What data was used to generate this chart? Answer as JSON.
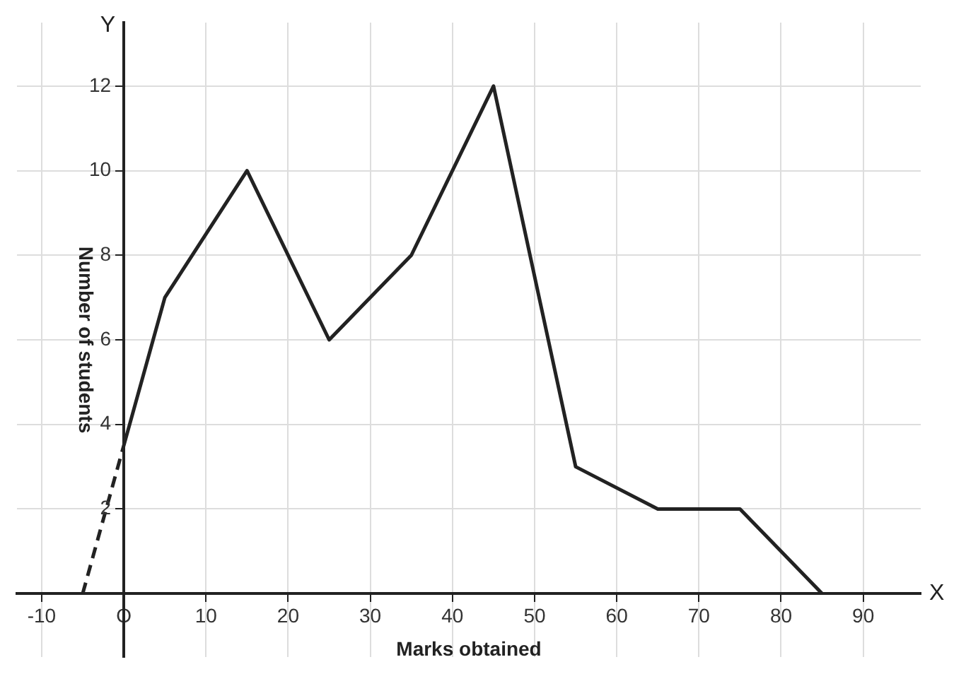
{
  "chart_data": {
    "type": "line",
    "xlabel": "Marks obtained",
    "ylabel": "Number of students",
    "annotations": [
      "X",
      "Y"
    ],
    "series": [
      {
        "color": "#222222",
        "x": [
          -5,
          0
        ],
        "values": [
          0,
          3.5
        ],
        "line_style": "dashed"
      },
      {
        "color": "#222222",
        "x": [
          0,
          5,
          15,
          25,
          35,
          45,
          55,
          65,
          75,
          85
        ],
        "values": [
          3.5,
          7,
          10,
          6,
          8,
          12,
          3,
          2,
          2,
          0
        ],
        "line_style": "solid"
      }
    ],
    "xlim": [
      -13,
      97
    ],
    "ylim": [
      -1.5,
      13.5
    ],
    "xticks": [
      -10,
      {
        "value": 0,
        "label": "O"
      },
      10,
      20,
      30,
      40,
      50,
      60,
      70,
      80,
      90
    ],
    "yticks": [
      2,
      4,
      6,
      8,
      10,
      12
    ],
    "grid": true
  }
}
